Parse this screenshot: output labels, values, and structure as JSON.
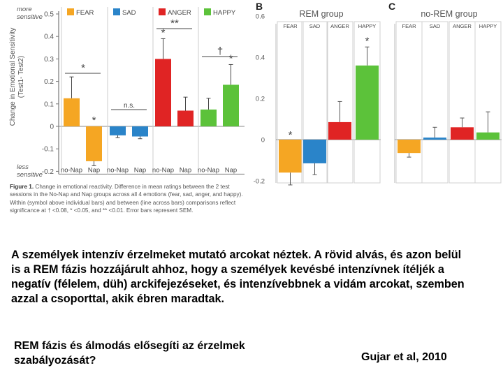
{
  "colors": {
    "fear": "#f5a623",
    "sad": "#2a84c9",
    "anger": "#e02424",
    "happy": "#5cc23a",
    "axis": "#777777"
  },
  "chart_data": [
    {
      "id": "A",
      "type": "bar",
      "panel_label": "",
      "title": "",
      "ylabel": "Change in Emotional Sensitivity (Test1- Test2)",
      "y_top_note": "more sensitive",
      "y_bottom_note": "less sensitive",
      "ylim": [
        -0.2,
        0.5
      ],
      "yticks": [
        "0.5",
        "0.4",
        "0.3",
        "0.2",
        "0.1",
        "0",
        "-0.1",
        "-0.2"
      ],
      "ytick_values": [
        0.5,
        0.4,
        0.3,
        0.2,
        0.1,
        0,
        -0.1,
        -0.2
      ],
      "legend": [
        "FEAR",
        "SAD",
        "ANGER",
        "HAPPY"
      ],
      "group_colors": [
        "fear",
        "sad",
        "anger",
        "happy"
      ],
      "bar_categories": [
        "no-Nap",
        "Nap"
      ],
      "series": [
        {
          "name": "FEAR",
          "values": [
            0.125,
            -0.155
          ],
          "errors": [
            0.095,
            0.02
          ]
        },
        {
          "name": "SAD",
          "values": [
            -0.04,
            -0.045
          ],
          "errors": [
            0.01,
            0.01
          ]
        },
        {
          "name": "ANGER",
          "values": [
            0.3,
            0.07
          ],
          "errors": [
            0.09,
            0.06
          ]
        },
        {
          "name": "HAPPY",
          "values": [
            0.075,
            0.185
          ],
          "errors": [
            0.05,
            0.09
          ]
        }
      ],
      "annotations": [
        {
          "group": 0,
          "kind": "line",
          "text": "*"
        },
        {
          "group": 0,
          "bar": 1,
          "kind": "below",
          "text": "*"
        },
        {
          "group": 1,
          "kind": "line",
          "text": "n.s."
        },
        {
          "group": 2,
          "kind": "line",
          "text": "**"
        },
        {
          "group": 2,
          "bar": 0,
          "kind": "above",
          "text": "*"
        },
        {
          "group": 3,
          "kind": "line",
          "text": "†"
        },
        {
          "group": 3,
          "bar": 1,
          "kind": "above",
          "text": "*"
        }
      ]
    },
    {
      "id": "B",
      "type": "bar",
      "panel_label": "B",
      "title": "REM group",
      "ylim": [
        -0.2,
        0.6
      ],
      "yticks": [
        "0.6",
        "0.4",
        "0.2",
        "0",
        "-0.2"
      ],
      "ytick_values": [
        0.6,
        0.4,
        0.2,
        0,
        -0.2
      ],
      "categories": [
        "FEAR",
        "SAD",
        "ANGER",
        "HAPPY"
      ],
      "group_colors": [
        "fear",
        "sad",
        "anger",
        "happy"
      ],
      "values": [
        -0.16,
        -0.115,
        0.085,
        0.36
      ],
      "errors": [
        0.06,
        0.055,
        0.1,
        0.09
      ],
      "annotations": [
        {
          "index": 0,
          "kind": "below",
          "text": "*"
        },
        {
          "index": 3,
          "kind": "above",
          "text": "*"
        }
      ]
    },
    {
      "id": "C",
      "type": "bar",
      "panel_label": "C",
      "title": "no-REM group",
      "ylim": [
        -0.2,
        0.6
      ],
      "yticks": [],
      "ytick_values": [],
      "categories": [
        "FEAR",
        "SAD",
        "ANGER",
        "HAPPY"
      ],
      "group_colors": [
        "fear",
        "sad",
        "anger",
        "happy"
      ],
      "values": [
        -0.065,
        0.01,
        0.06,
        0.035
      ],
      "errors": [
        0.02,
        0.05,
        0.045,
        0.1
      ],
      "annotations": []
    }
  ],
  "caption": {
    "label": "Figure 1.",
    "text": "Change in emotional reactivity. Difference in mean ratings between the 2 test sessions in the No-Nap and Nap groups across all 4 emotions (fear, sad, anger, and happy). Within (symbol above individual bars) and between (line across bars) comparisons reflect significance at † <0.08, * <0.05, and ** <0.01. Error bars represent SEM."
  },
  "description": "A személyek intenzív érzelmeket mutató arcokat néztek. A rövid alvás, és azon belül is a REM fázis hozzájárult ahhoz, hogy a személyek kevésbé intenzívnek ítéljék a negatív (félelem, düh) arckifejezéseket, és intenzívebbnek a vidám arcokat, szemben azzal a csoporttal, akik ébren maradtak.",
  "question": "REM fázis és álmodás elősegíti az érzelmek szabályozását?",
  "citation": "Gujar et al, 2010"
}
